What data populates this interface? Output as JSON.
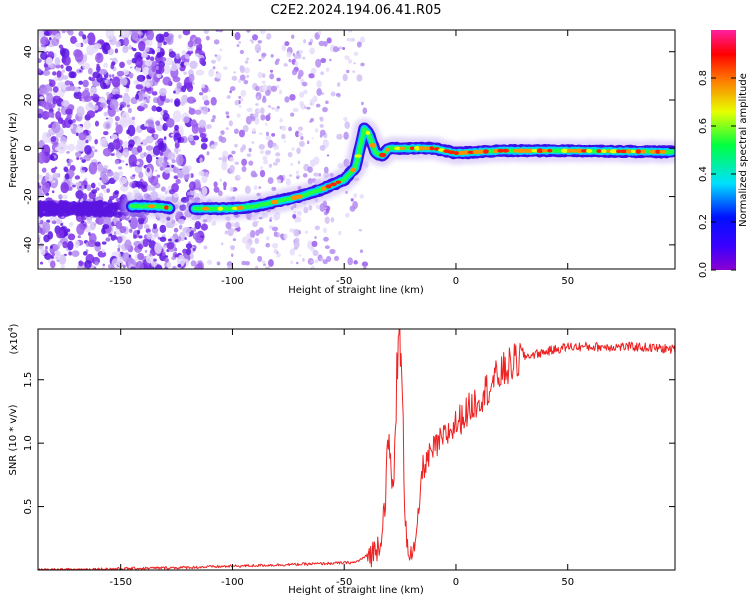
{
  "figure": {
    "title": "C2E2.2024.194.06.41.R05"
  },
  "chart_data": [
    {
      "type": "heatmap",
      "xlabel": "Height of straight line (km)",
      "ylabel": "Frequency (Hz)",
      "xlim": [
        -187,
        98
      ],
      "ylim": [
        -50,
        49
      ],
      "xticks": [
        -150,
        -100,
        -50,
        0,
        50
      ],
      "yticks": [
        -40,
        -20,
        0,
        20,
        40
      ],
      "colorbar": {
        "label": "Normalized spectral amplitude",
        "range": [
          0.0,
          1.0
        ],
        "ticks": [
          0.0,
          0.2,
          0.4,
          0.6,
          0.8
        ],
        "tick_labels": [
          "0.0",
          "0.2",
          "0.4",
          "0.6",
          "0.8"
        ],
        "colors": [
          "#ffffff",
          "#b48cf0",
          "#5a1ee6",
          "#2030e0",
          "#00c8ff",
          "#20ff30",
          "#e6ff00",
          "#ff8c00",
          "#ff0000",
          "#ff50a0"
        ]
      },
      "ridge": {
        "x": [
          -145,
          -135,
          -125,
          -112,
          -100,
          -90,
          -80,
          -70,
          -60,
          -50,
          -45,
          -41,
          -39,
          -36,
          -33,
          -30,
          -25,
          -20,
          -10,
          0,
          20,
          50,
          97
        ],
        "y": [
          -24,
          -24,
          -25,
          -25,
          -25,
          -24,
          -22,
          -20,
          -17,
          -13,
          -8,
          8,
          6,
          -2,
          -3,
          0,
          0,
          0,
          0,
          -2,
          -1,
          -1,
          -1.5
        ]
      },
      "grid": false
    },
    {
      "type": "line",
      "xlabel": "Height of straight line (km)",
      "ylabel": "SNR (10 * v/v)",
      "scale_label": "(x10^4)",
      "xlim": [
        -187,
        98
      ],
      "ylim": [
        0,
        1.9
      ],
      "xticks": [
        -150,
        -100,
        -50,
        0,
        50
      ],
      "yticks": [
        0.5,
        1.0,
        1.5
      ],
      "ytick_labels": [
        "0.5",
        "1.0",
        "1.5"
      ],
      "series": [
        {
          "color": "#ee2222",
          "x": [
            -187,
            -150,
            -120,
            -100,
            -80,
            -60,
            -45,
            -36,
            -33,
            -30,
            -28,
            -27,
            -26,
            -25,
            -24,
            -23,
            -22,
            -20,
            -18,
            -15,
            -10,
            -5,
            0,
            5,
            10,
            15,
            20,
            25,
            30,
            40,
            50,
            60,
            70,
            80,
            97
          ],
          "y": [
            0.0,
            0.01,
            0.02,
            0.03,
            0.04,
            0.05,
            0.06,
            0.15,
            0.3,
            1.0,
            0.55,
            1.35,
            1.6,
            1.9,
            1.3,
            0.6,
            0.25,
            0.1,
            0.2,
            0.8,
            0.95,
            1.05,
            1.15,
            1.25,
            1.35,
            1.45,
            1.55,
            1.62,
            1.68,
            1.72,
            1.76,
            1.76,
            1.76,
            1.76,
            1.74
          ]
        }
      ],
      "grid": false
    }
  ]
}
